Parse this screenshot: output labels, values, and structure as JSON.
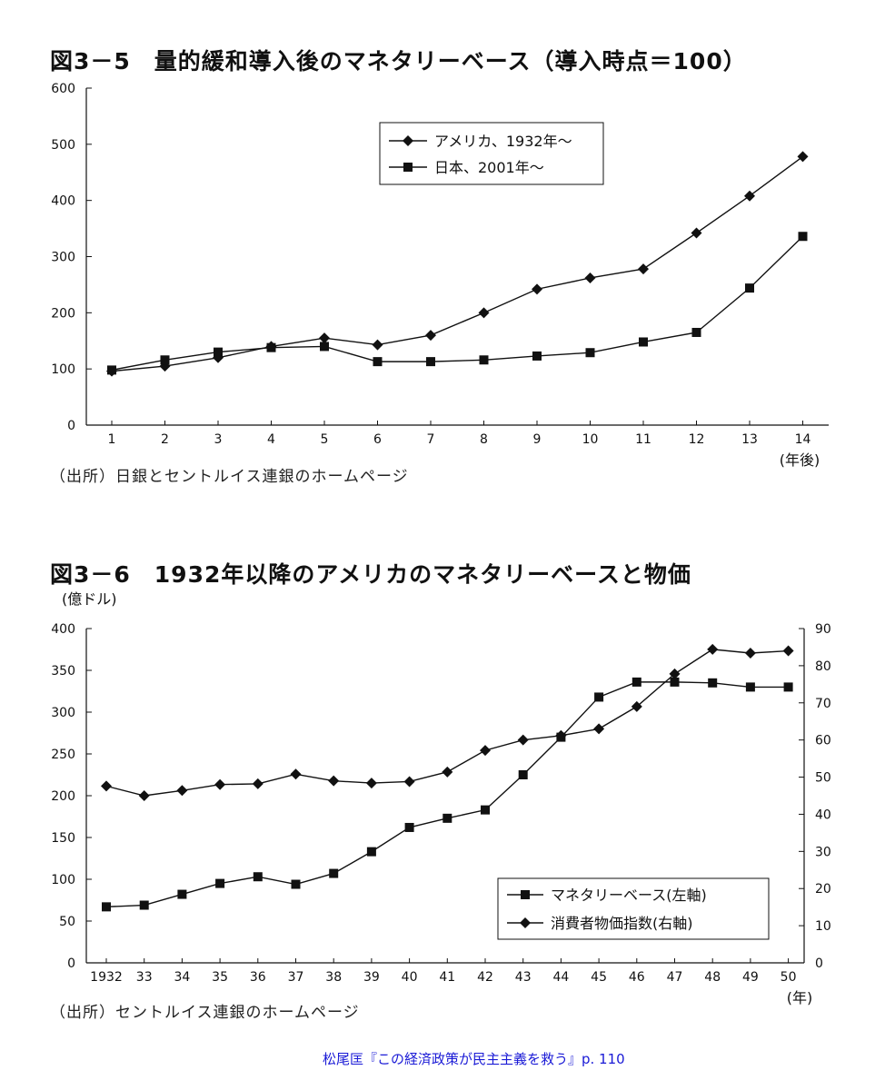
{
  "citation": "松尾匡『この経済政策が民主主義を救う』p. 110",
  "chart_data": [
    {
      "type": "line",
      "title": "図3－5　量的緩和導入後のマネタリーベース（導入時点＝100）",
      "source": "（出所）日銀とセントルイス連銀のホームページ",
      "x": [
        1,
        2,
        3,
        4,
        5,
        6,
        7,
        8,
        9,
        10,
        11,
        12,
        13,
        14
      ],
      "x_unit": "(年後)",
      "ylim": [
        0,
        600
      ],
      "yticks": [
        0,
        100,
        200,
        300,
        400,
        500,
        600
      ],
      "grid": false,
      "legend": "top-center",
      "series": [
        {
          "name": "アメリカ、1932年～",
          "marker": "diamond",
          "values": [
            96,
            105,
            120,
            140,
            155,
            143,
            160,
            200,
            242,
            262,
            278,
            342,
            408,
            478
          ]
        },
        {
          "name": "日本、2001年～",
          "marker": "square",
          "values": [
            98,
            116,
            130,
            138,
            140,
            113,
            113,
            116,
            123,
            129,
            148,
            165,
            244,
            336
          ]
        }
      ]
    },
    {
      "type": "line",
      "title": "図3－6　1932年以降のアメリカのマネタリーベースと物価",
      "source": "（出所）セントルイス連銀のホームページ",
      "x": [
        "1932",
        "33",
        "34",
        "35",
        "36",
        "37",
        "38",
        "39",
        "40",
        "41",
        "42",
        "43",
        "44",
        "45",
        "46",
        "47",
        "48",
        "49",
        "50"
      ],
      "x_unit": "(年)",
      "ylabel_left": "(億ドル)",
      "ylim_left": [
        0,
        400
      ],
      "yticks_left": [
        0,
        50,
        100,
        150,
        200,
        250,
        300,
        350,
        400
      ],
      "ylim_right": [
        0,
        90
      ],
      "yticks_right": [
        0,
        10,
        20,
        30,
        40,
        50,
        60,
        70,
        80,
        90
      ],
      "grid": false,
      "legend": "bottom-right",
      "series": [
        {
          "name": "マネタリーベース(左軸)",
          "axis": "left",
          "marker": "square",
          "values": [
            67,
            69,
            82,
            95,
            103,
            94,
            107,
            133,
            162,
            173,
            183,
            225,
            270,
            318,
            336,
            336,
            335,
            330,
            330
          ]
        },
        {
          "name": "消費者物価指数(右軸)",
          "axis": "right",
          "marker": "diamond",
          "values": [
            47.6,
            45.0,
            46.4,
            48.0,
            48.2,
            50.8,
            49.0,
            48.4,
            48.8,
            51.4,
            57.2,
            60.0,
            61.2,
            63.0,
            69.0,
            77.8,
            84.4,
            83.4,
            84.0
          ]
        }
      ]
    }
  ]
}
